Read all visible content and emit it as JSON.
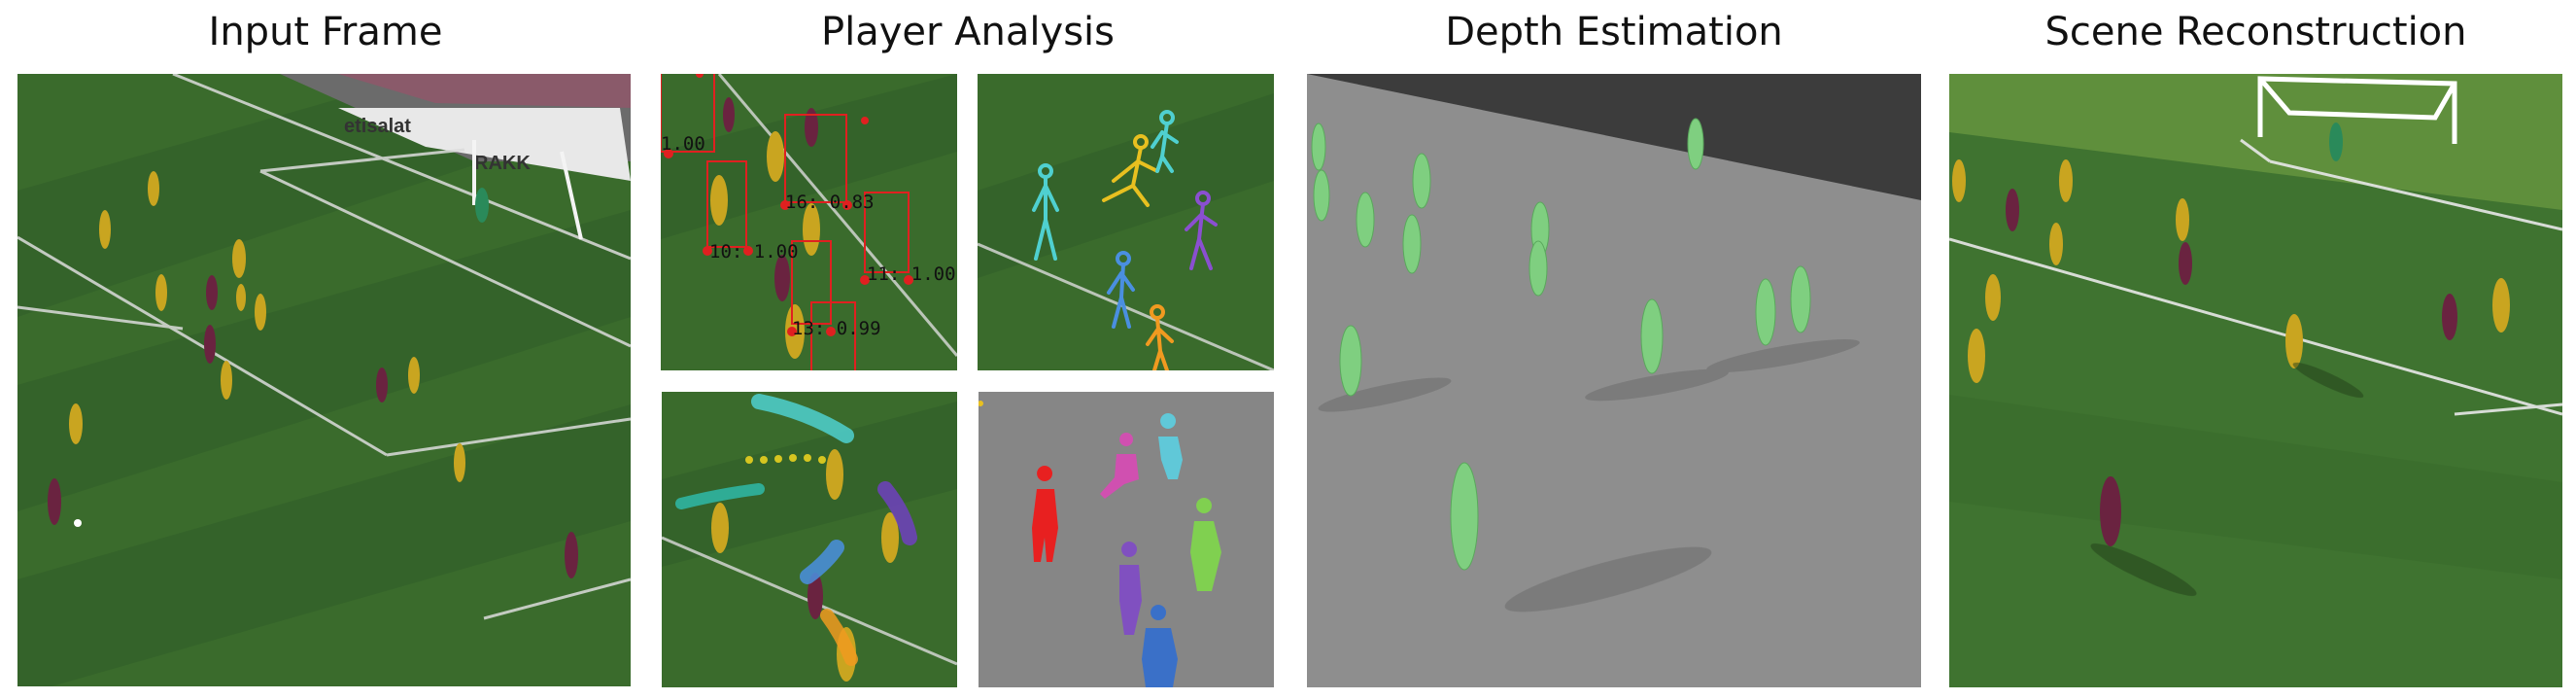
{
  "titles": {
    "input": "Input Frame",
    "player": "Player Analysis",
    "depth": "Depth Estimation",
    "scene": "Scene Reconstruction"
  },
  "detections": [
    {
      "label": "1.00"
    },
    {
      "label": "16: 0.83"
    },
    {
      "label": "10: 1.00"
    },
    {
      "label": "11: 1.00"
    },
    {
      "label": "13: 0.99"
    }
  ],
  "ads": {
    "left": "etisalat",
    "right": "RAKK"
  },
  "colors": {
    "pitch_dark": "#2e5a22",
    "pitch_light": "#3f7330",
    "detection_box": "#e02020",
    "depth_floor": "#8e8e8e",
    "depth_wall": "#3c3c3c",
    "depth_player": "#7fcf80",
    "seg_background": "#868686"
  },
  "pose_colors": [
    "#4fd0d0",
    "#e8c020",
    "#8a4fd0",
    "#4a8fe0",
    "#f09a20"
  ],
  "segment_colors": [
    "#e82020",
    "#d050b0",
    "#60c8d8",
    "#8050c0",
    "#80d050",
    "#3a70c8"
  ]
}
